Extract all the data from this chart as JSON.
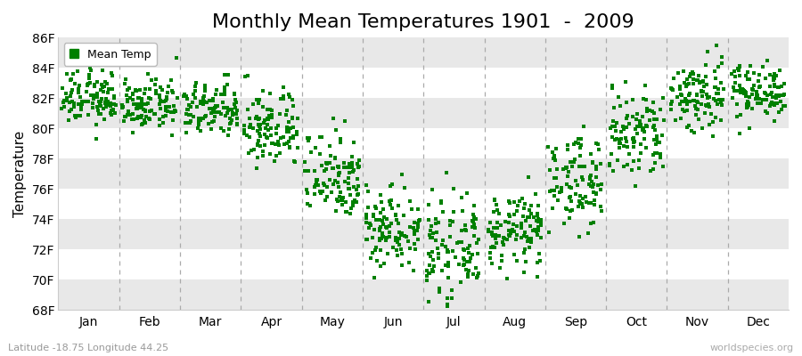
{
  "title": "Monthly Mean Temperatures 1901  -  2009",
  "ylabel": "Temperature",
  "subtitle": "Latitude -18.75 Longitude 44.25",
  "watermark": "worldspecies.org",
  "ylim": [
    68,
    86
  ],
  "yticks": [
    68,
    70,
    72,
    74,
    76,
    78,
    80,
    82,
    84,
    86
  ],
  "ytick_labels": [
    "68F",
    "70F",
    "72F",
    "74F",
    "76F",
    "78F",
    "80F",
    "82F",
    "84F",
    "86F"
  ],
  "months": [
    "Jan",
    "Feb",
    "Mar",
    "Apr",
    "May",
    "Jun",
    "Jul",
    "Aug",
    "Sep",
    "Oct",
    "Nov",
    "Dec"
  ],
  "dot_color": "#008000",
  "background_color": "#ffffff",
  "hband_color": "#e8e8e8",
  "n_years": 109,
  "monthly_means": [
    82.0,
    81.5,
    81.2,
    80.0,
    77.0,
    73.5,
    72.0,
    73.2,
    76.5,
    79.5,
    82.2,
    82.5
  ],
  "monthly_stds": [
    0.9,
    0.8,
    0.9,
    1.3,
    1.5,
    1.4,
    1.5,
    1.2,
    1.5,
    1.6,
    1.3,
    0.9
  ],
  "legend_label": "Mean Temp",
  "title_fontsize": 16,
  "axis_fontsize": 11,
  "tick_fontsize": 10
}
